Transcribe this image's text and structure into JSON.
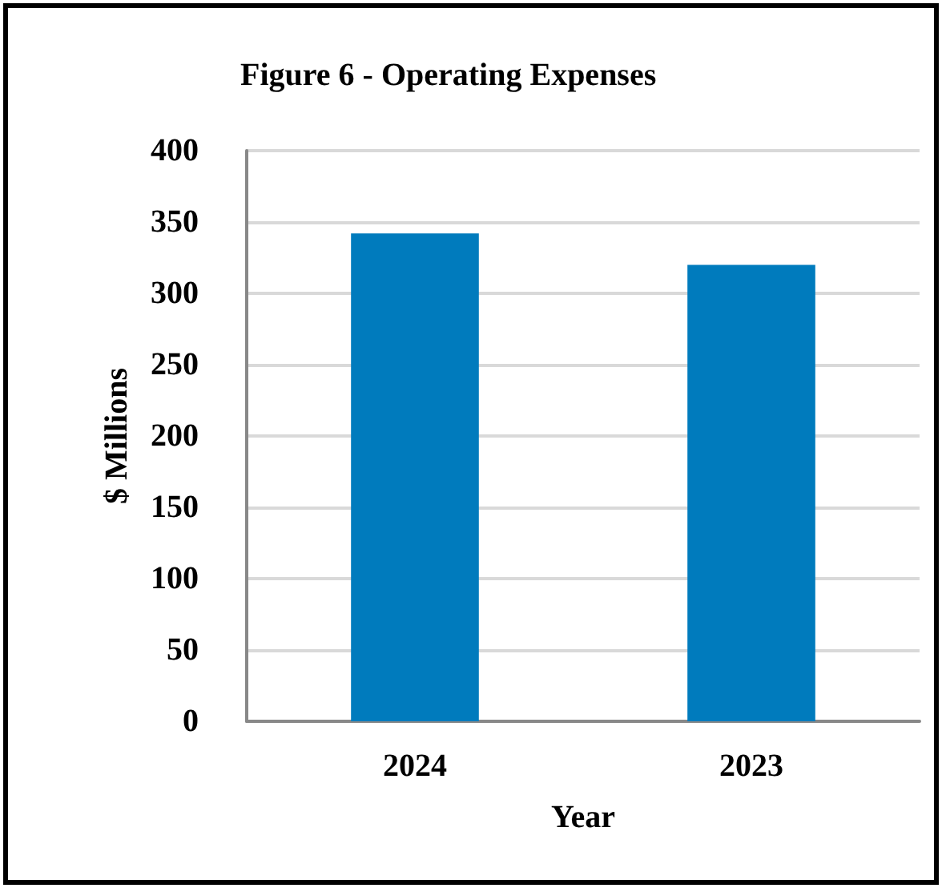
{
  "chart_data": {
    "type": "bar",
    "title": "Figure 6 - Operating Expenses",
    "xlabel": "Year",
    "ylabel": "$ Millions",
    "categories": [
      "2024",
      "2023"
    ],
    "values": [
      342,
      320
    ],
    "color": "#007bbd",
    "ylim": [
      0,
      400
    ],
    "yticks": [
      0,
      50,
      100,
      150,
      200,
      250,
      300,
      350,
      400
    ],
    "grid": "y"
  }
}
